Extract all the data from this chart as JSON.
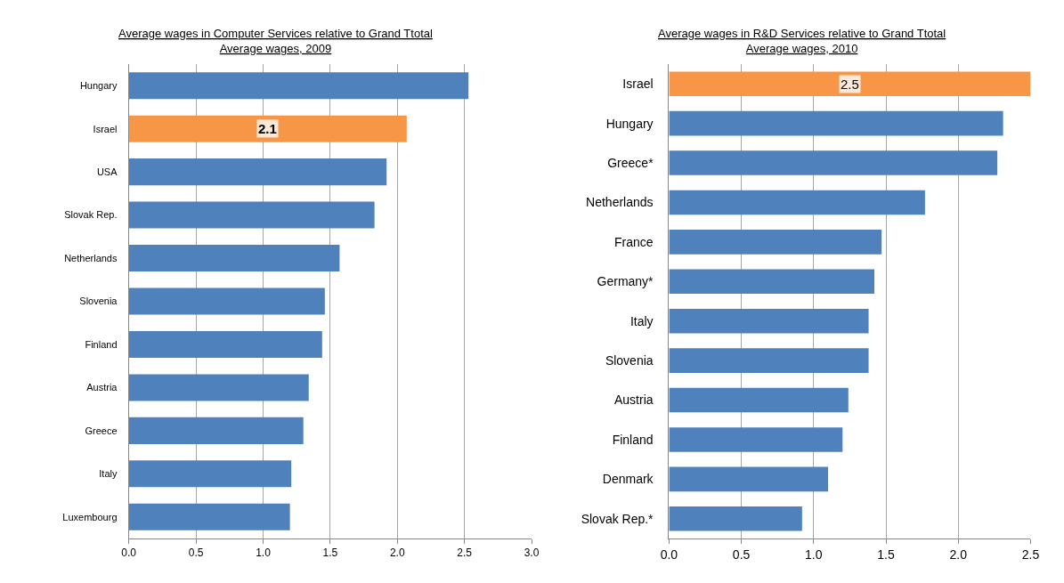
{
  "chart_data": [
    {
      "type": "bar",
      "orientation": "horizontal",
      "title": "Average wages in Computer Services relative to Grand Ttotal\nAverage wages, 2009",
      "categories": [
        "Hungary",
        "Israel",
        "USA",
        "Slovak Rep.",
        "Netherlands",
        "Slovenia",
        "Finland",
        "Austria",
        "Greece",
        "Italy",
        "Luxembourg"
      ],
      "values": [
        2.53,
        2.07,
        1.92,
        1.83,
        1.57,
        1.46,
        1.44,
        1.34,
        1.3,
        1.21,
        1.2
      ],
      "value_labels": [
        null,
        "2.1",
        null,
        null,
        null,
        null,
        null,
        null,
        null,
        null,
        null
      ],
      "colors": [
        "#4f81bd",
        "#f79646",
        "#4f81bd",
        "#4f81bd",
        "#4f81bd",
        "#4f81bd",
        "#4f81bd",
        "#4f81bd",
        "#4f81bd",
        "#4f81bd",
        "#4f81bd"
      ],
      "xlim": [
        0,
        3
      ],
      "xticks": [
        {
          "value": 0,
          "label": "0.0"
        },
        0.5,
        {
          "value": 1,
          "label": "1.0"
        },
        1.5,
        {
          "value": 2,
          "label": "2.0"
        },
        2.5,
        {
          "value": 3,
          "label": "3.0"
        }
      ],
      "grid": "x"
    },
    {
      "type": "bar",
      "orientation": "horizontal",
      "title": "Average wages in R&D Services relative to Grand Ttotal\nAverage wages, 2010",
      "categories": [
        "Israel",
        "Hungary",
        "Greece*",
        "Netherlands",
        "France",
        "Germany*",
        "Italy",
        "Slovenia",
        "Austria",
        "Finland",
        "Denmark",
        "Slovak Rep.*"
      ],
      "values": [
        2.5,
        2.31,
        2.27,
        1.77,
        1.47,
        1.42,
        1.38,
        1.38,
        1.24,
        1.2,
        1.1,
        0.92
      ],
      "value_labels": [
        "2.5",
        null,
        null,
        null,
        null,
        null,
        null,
        null,
        null,
        null,
        null,
        null
      ],
      "colors": [
        "#f79646",
        "#4f81bd",
        "#4f81bd",
        "#4f81bd",
        "#4f81bd",
        "#4f81bd",
        "#4f81bd",
        "#4f81bd",
        "#4f81bd",
        "#4f81bd",
        "#4f81bd",
        "#4f81bd"
      ],
      "xlim": [
        0,
        2.5
      ],
      "xticks": [
        {
          "value": 0,
          "label": "0.0"
        },
        0.5,
        {
          "value": 1,
          "label": "1.0"
        },
        1.5,
        {
          "value": 2,
          "label": "2.0"
        },
        2.5
      ],
      "grid": "x"
    }
  ]
}
